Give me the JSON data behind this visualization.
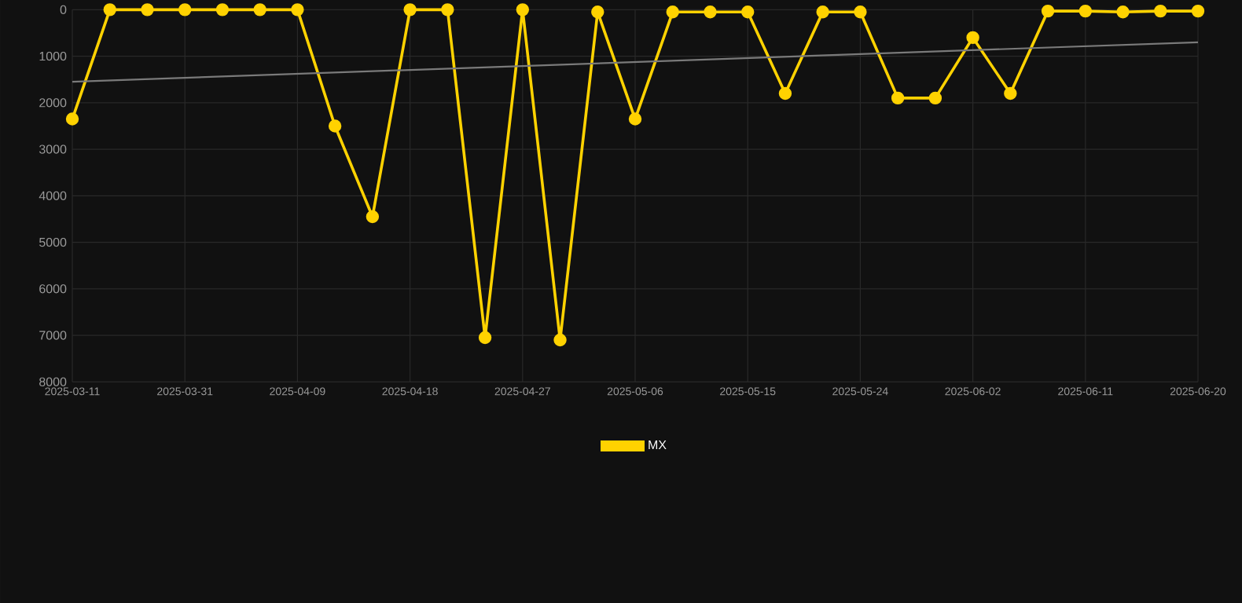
{
  "chart_data": {
    "type": "line",
    "categories": [
      "2025-03-11",
      null,
      null,
      "2025-03-31",
      null,
      null,
      "2025-04-09",
      null,
      null,
      "2025-04-18",
      null,
      null,
      "2025-04-27",
      null,
      null,
      "2025-05-06",
      null,
      null,
      "2025-05-15",
      null,
      null,
      "2025-05-24",
      null,
      null,
      "2025-06-02",
      null,
      null,
      "2025-06-11",
      null,
      null,
      "2025-06-20"
    ],
    "series": [
      {
        "name": "MX",
        "color": "#ffd200",
        "marker": "circle",
        "values": [
          2350,
          0,
          0,
          0,
          0,
          0,
          0,
          2500,
          4450,
          0,
          0,
          7050,
          0,
          7100,
          50,
          2350,
          50,
          50,
          50,
          1800,
          50,
          50,
          1900,
          1900,
          600,
          1800,
          30,
          30,
          50,
          30,
          30
        ]
      },
      {
        "type": "line",
        "color": "#7a7a7a",
        "marker": "none",
        "values": [
          1550,
          null,
          null,
          null,
          null,
          null,
          null,
          null,
          null,
          null,
          null,
          null,
          null,
          null,
          null,
          null,
          null,
          null,
          null,
          null,
          null,
          null,
          null,
          null,
          null,
          null,
          null,
          null,
          null,
          null,
          700
        ]
      }
    ],
    "ylim": [
      8000,
      0
    ],
    "yticks": [
      0,
      1000,
      2000,
      3000,
      4000,
      5000,
      6000,
      7000,
      8000
    ],
    "grid": true,
    "legend": "bottom",
    "line_style": "solid"
  }
}
